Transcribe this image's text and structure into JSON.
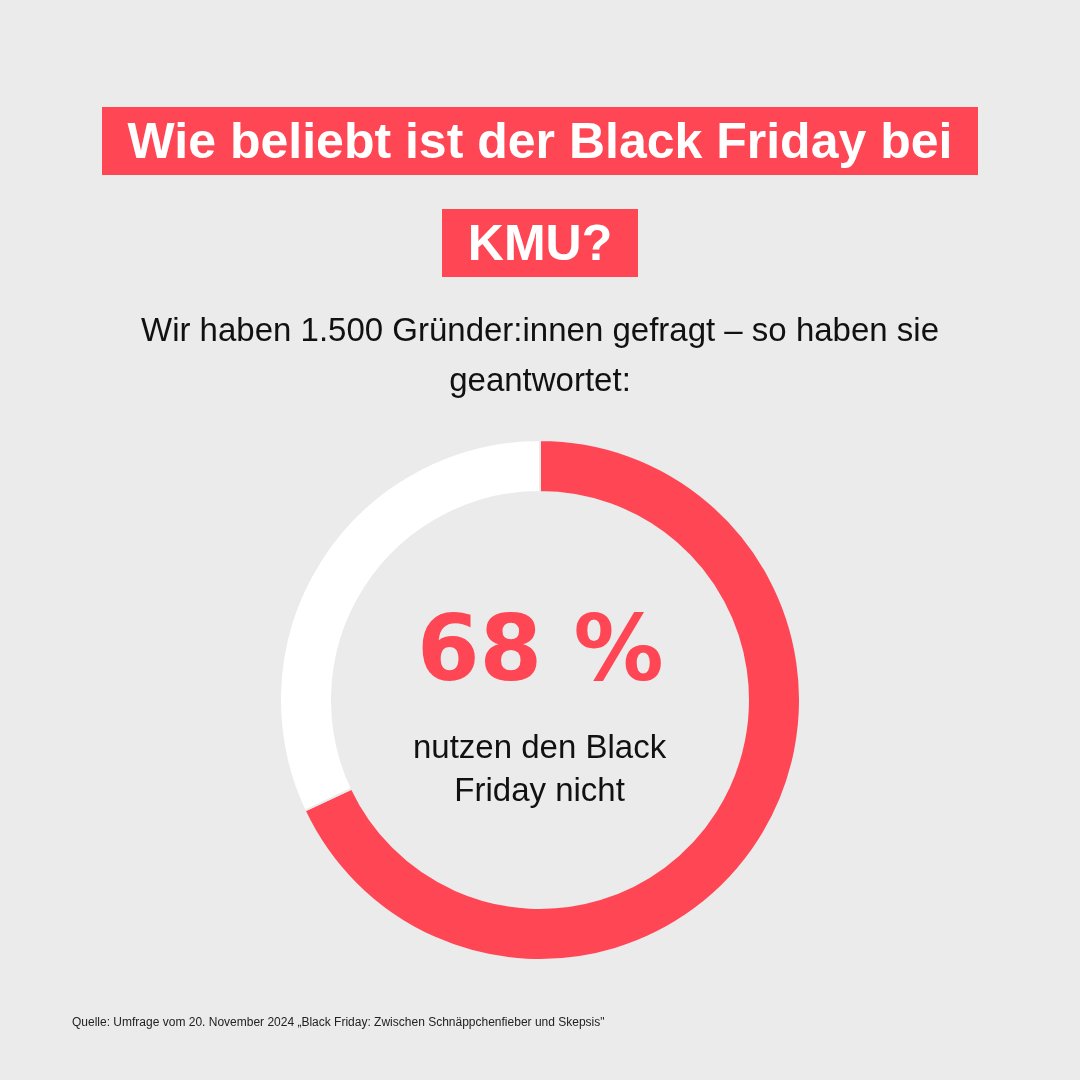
{
  "chart_data": {
    "type": "donut",
    "title": "Wie beliebt ist der Black Friday bei KMU?",
    "subtitle": "Wir haben 1.500 Gründer:innen gefragt – so haben sie geantwortet:",
    "categories": [
      "nutzen den Black Friday nicht",
      null
    ],
    "values": [
      68,
      32
    ],
    "colors": [
      "#ff4654",
      "#ffffff"
    ],
    "value_labels": [
      "68 %",
      null
    ],
    "annotations": [
      "Quelle: Umfrage vom 20. November 2024 „Black Friday: Zwischen Schnäppchenfieber und Skepsis\""
    ]
  }
}
